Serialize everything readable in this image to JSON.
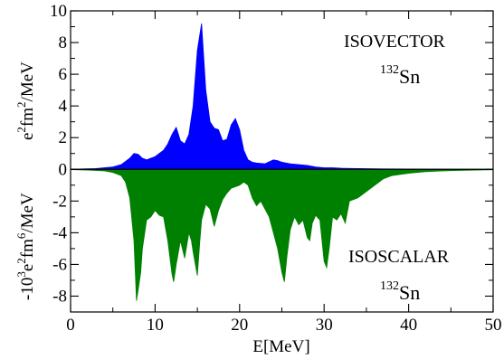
{
  "chart_data": {
    "type": "area",
    "xlabel": "E[MeV]",
    "ylabel": "e²fm²/MeV   -10³e²fm⁶/MeV",
    "xlim": [
      0,
      50
    ],
    "ylim": [
      -9,
      10
    ],
    "x_ticks": [
      0,
      10,
      20,
      30,
      40,
      50
    ],
    "x_tick_labels": [
      "0",
      "10",
      "20",
      "30",
      "40",
      "50"
    ],
    "y_ticks": [
      -8,
      -6,
      -4,
      -2,
      0,
      2,
      4,
      6,
      8,
      10
    ],
    "y_tick_labels": [
      "-8",
      "-6",
      "-4",
      "-2",
      "0",
      "2",
      "4",
      "6",
      "8",
      "10"
    ],
    "ylabel_upper": {
      "base": "e",
      "sup1": "2",
      "mid": "fm",
      "sup2": "2",
      "tail": "/MeV"
    },
    "ylabel_lower": {
      "base": "-10",
      "sup1": "3",
      "mid": "e",
      "sup2": "2",
      "mid2": "fm",
      "sup3": "6",
      "tail": "/MeV"
    },
    "annotations": {
      "isovector": "ISOVECTOR",
      "isoscalar": "ISOSCALAR",
      "nucleus_mass": "132",
      "nucleus_symbol": "Sn"
    },
    "series": [
      {
        "color": "#0000ff",
        "x": [
          0,
          3,
          5,
          6,
          7,
          7.5,
          8,
          8.5,
          9,
          9.5,
          10,
          10.5,
          11,
          11.5,
          12,
          12.5,
          13,
          13.5,
          14,
          14.5,
          15,
          15.5,
          16,
          16.5,
          17,
          17.5,
          18,
          18.5,
          19,
          19.5,
          20,
          20.5,
          21,
          21.5,
          22,
          23,
          24,
          24.5,
          25,
          26,
          27,
          28,
          29,
          30,
          31,
          32,
          34,
          37,
          40,
          45,
          50
        ],
        "y": [
          0.01,
          0.05,
          0.15,
          0.3,
          0.7,
          1.0,
          0.95,
          0.7,
          0.6,
          0.7,
          0.8,
          1.0,
          1.2,
          1.6,
          2.2,
          2.65,
          1.8,
          1.6,
          2.2,
          4.0,
          7.5,
          9.2,
          5.0,
          3.0,
          2.6,
          2.5,
          1.8,
          1.9,
          2.8,
          3.2,
          2.5,
          1.2,
          0.6,
          0.45,
          0.4,
          0.35,
          0.6,
          0.55,
          0.45,
          0.35,
          0.3,
          0.25,
          0.15,
          0.1,
          0.1,
          0.07,
          0.05,
          0.03,
          0.02,
          0.01,
          0.0
        ]
      },
      {
        "color": "#008000",
        "x": [
          0,
          2,
          4,
          5,
          6,
          6.5,
          7,
          7.5,
          7.8,
          8,
          8.3,
          8.5,
          9,
          9.5,
          10,
          10.5,
          11,
          11.5,
          12,
          12.2,
          12.5,
          13,
          13.5,
          14,
          14.3,
          14.5,
          15,
          15.3,
          15.5,
          16,
          16.5,
          17,
          17.5,
          18,
          18.5,
          19,
          19.5,
          20,
          20.5,
          21,
          21.5,
          22,
          22.5,
          23,
          23.5,
          24,
          24.5,
          25,
          25.3,
          25.6,
          26,
          26.5,
          27,
          27.5,
          28,
          28.3,
          28.6,
          29,
          29.5,
          30,
          30.3,
          30.6,
          31,
          31.5,
          32,
          32.5,
          33,
          34,
          35,
          36,
          37,
          38,
          40,
          42,
          44,
          46,
          48,
          50
        ],
        "y": [
          -0.02,
          -0.05,
          -0.1,
          -0.2,
          -0.4,
          -0.8,
          -1.8,
          -4.5,
          -8.3,
          -7.6,
          -6.5,
          -5.0,
          -3.2,
          -3.0,
          -2.6,
          -2.9,
          -3.0,
          -4.5,
          -6.6,
          -7.1,
          -6.0,
          -4.5,
          -5.6,
          -4.0,
          -4.5,
          -5.2,
          -6.7,
          -4.5,
          -3.2,
          -2.2,
          -2.5,
          -3.6,
          -2.6,
          -1.9,
          -1.5,
          -1.2,
          -1.1,
          -1.0,
          -0.8,
          -1.0,
          -1.8,
          -2.3,
          -2.0,
          -2.5,
          -3.0,
          -4.0,
          -5.0,
          -6.5,
          -7.1,
          -5.5,
          -3.8,
          -3.0,
          -3.5,
          -3.2,
          -4.3,
          -4.5,
          -3.4,
          -2.9,
          -3.2,
          -5.8,
          -6.2,
          -5.0,
          -3.0,
          -3.2,
          -2.8,
          -3.4,
          -2.0,
          -1.8,
          -1.4,
          -1.0,
          -0.6,
          -0.4,
          -0.25,
          -0.15,
          -0.1,
          -0.07,
          -0.05,
          -0.03
        ]
      }
    ]
  }
}
